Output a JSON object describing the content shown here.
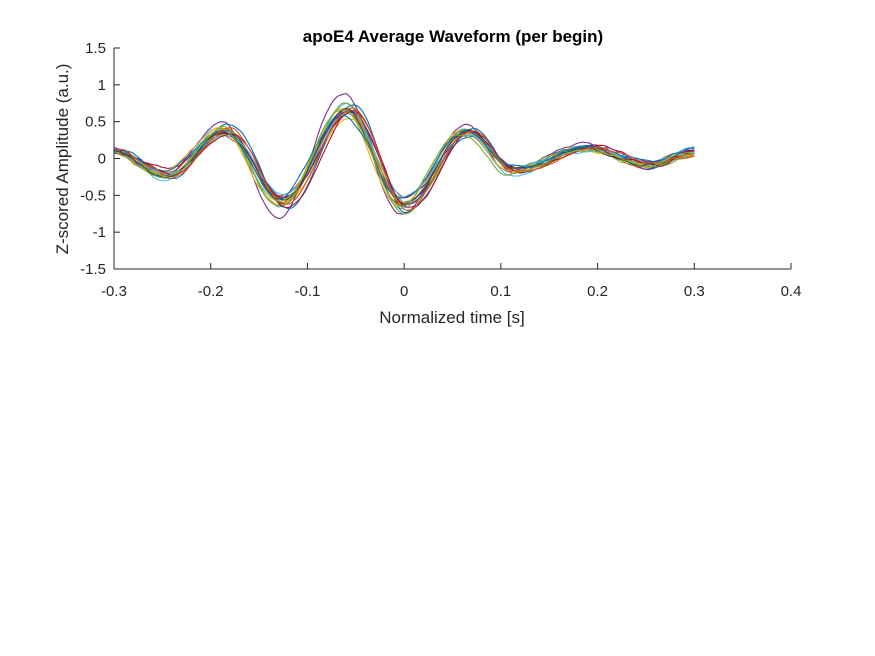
{
  "chart_data": {
    "type": "line",
    "title": "apoE4 Average Waveform (per begin)",
    "xlabel": "Normalized time [s]",
    "ylabel": "Z-scored Amplitude (a.u.)",
    "xlim": [
      -0.3,
      0.4
    ],
    "ylim": [
      -1.5,
      1.5
    ],
    "xticks": [
      "-0.3",
      "-0.2",
      "-0.1",
      "0",
      "0.1",
      "0.2",
      "0.3",
      "0.4"
    ],
    "yticks": [
      "1.5",
      "1",
      "0.5",
      "0",
      "-0.5",
      "-1",
      "-1.5"
    ],
    "grid": false,
    "legend": "none",
    "waveform": {
      "x_range": [
        -0.3,
        0.3
      ],
      "extrema": [
        {
          "x": -0.3,
          "y": 0.1
        },
        {
          "x": -0.245,
          "y": -0.22
        },
        {
          "x": -0.185,
          "y": 0.37
        },
        {
          "x": -0.125,
          "y": -0.58
        },
        {
          "x": -0.058,
          "y": 0.65
        },
        {
          "x": 0.0,
          "y": -0.62
        },
        {
          "x": 0.065,
          "y": 0.37
        },
        {
          "x": 0.115,
          "y": -0.16
        },
        {
          "x": 0.19,
          "y": 0.14
        },
        {
          "x": 0.255,
          "y": -0.08
        },
        {
          "x": 0.3,
          "y": 0.08
        }
      ]
    },
    "series": [
      {
        "color": "#0072BD",
        "scale": 1.04,
        "dx": 0.0,
        "dy": 0.0
      },
      {
        "color": "#D95319",
        "scale": 0.9,
        "dx": 0.002,
        "dy": 0.02
      },
      {
        "color": "#EDB120",
        "scale": 0.96,
        "dx": -0.002,
        "dy": -0.03
      },
      {
        "color": "#7E2F8E",
        "scale": 1.32,
        "dx": 0.004,
        "dy": 0.02
      },
      {
        "color": "#77AC30",
        "scale": 0.95,
        "dx": -0.003,
        "dy": 0.01
      },
      {
        "color": "#4DBEEE",
        "scale": 1.1,
        "dx": 0.003,
        "dy": -0.02
      },
      {
        "color": "#A2142F",
        "scale": 0.92,
        "dx": -0.001,
        "dy": 0.03
      },
      {
        "color": "#0072BD",
        "scale": 1.16,
        "dx": -0.004,
        "dy": 0.01
      },
      {
        "color": "#D95319",
        "scale": 1.0,
        "dx": 0.001,
        "dy": -0.01
      },
      {
        "color": "#EDB120",
        "scale": 1.06,
        "dx": 0.005,
        "dy": 0.0
      },
      {
        "color": "#7E2F8E",
        "scale": 0.98,
        "dx": -0.002,
        "dy": 0.02
      },
      {
        "color": "#77AC30",
        "scale": 1.12,
        "dx": 0.002,
        "dy": -0.01
      },
      {
        "color": "#4DBEEE",
        "scale": 0.86,
        "dx": 0.0,
        "dy": 0.01
      },
      {
        "color": "#A2142F",
        "scale": 1.04,
        "dx": -0.005,
        "dy": -0.02
      },
      {
        "color": "#404040",
        "scale": 1.0,
        "dx": 0.001,
        "dy": 0.0
      },
      {
        "color": "#0072BD",
        "scale": 0.94,
        "dx": 0.003,
        "dy": 0.02
      },
      {
        "color": "#D95319",
        "scale": 1.08,
        "dx": -0.003,
        "dy": 0.0
      },
      {
        "color": "#77AC30",
        "scale": 1.02,
        "dx": 0.004,
        "dy": -0.01
      }
    ]
  }
}
